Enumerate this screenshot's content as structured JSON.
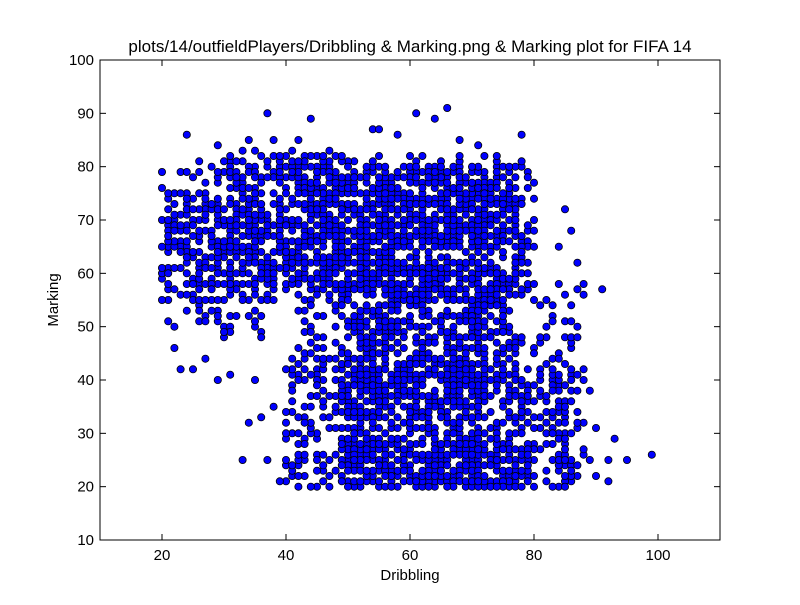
{
  "chart_data": {
    "type": "scatter",
    "title": "plots/14/outfieldPlayers/Dribbling & Marking.png & Marking plot for FIFA 14",
    "xlabel": "Dribbling",
    "ylabel": "Marking",
    "xlim": [
      10,
      110
    ],
    "ylim": [
      10,
      100
    ],
    "xticks": [
      "20",
      "40",
      "60",
      "80",
      "100"
    ],
    "yticks": [
      "10",
      "20",
      "30",
      "40",
      "50",
      "60",
      "70",
      "80",
      "90",
      "100"
    ],
    "marker_color": "#0000ff",
    "marker_edge": "#000000",
    "grid": false,
    "legend": false,
    "regions": [
      {
        "x": [
          20,
          80
        ],
        "y": [
          55,
          80
        ],
        "n": 750
      },
      {
        "x": [
          42,
          78
        ],
        "y": [
          40,
          82
        ],
        "n": 700
      },
      {
        "x": [
          50,
          72
        ],
        "y": [
          20,
          80
        ],
        "n": 750
      },
      {
        "x": [
          20,
          36
        ],
        "y": [
          48,
          75
        ],
        "n": 160
      },
      {
        "x": [
          48,
          86
        ],
        "y": [
          20,
          42
        ],
        "n": 420
      },
      {
        "x": [
          40,
          56
        ],
        "y": [
          20,
          45
        ],
        "n": 160
      },
      {
        "x": [
          72,
          88
        ],
        "y": [
          20,
          58
        ],
        "n": 160
      },
      {
        "x": [
          30,
          50
        ],
        "y": [
          58,
          83
        ],
        "n": 260
      },
      {
        "x": [
          56,
          80
        ],
        "y": [
          20,
          28
        ],
        "n": 200
      }
    ],
    "points": [
      [
        37,
        90
      ],
      [
        44,
        89
      ],
      [
        61,
        90
      ],
      [
        64,
        89
      ],
      [
        66,
        91
      ],
      [
        24,
        86
      ],
      [
        78,
        86
      ],
      [
        29,
        84
      ],
      [
        34,
        85
      ],
      [
        38,
        85
      ],
      [
        42,
        85
      ],
      [
        58,
        86
      ],
      [
        68,
        85
      ],
      [
        71,
        84
      ],
      [
        54,
        87
      ],
      [
        55,
        87
      ],
      [
        99,
        26
      ],
      [
        91,
        57
      ],
      [
        93,
        29
      ],
      [
        92,
        25
      ],
      [
        92,
        21
      ],
      [
        90,
        31
      ],
      [
        89,
        38
      ],
      [
        88,
        58
      ],
      [
        87,
        62
      ],
      [
        86,
        68
      ],
      [
        85,
        72
      ],
      [
        84,
        65
      ],
      [
        22,
        46
      ],
      [
        23,
        42
      ],
      [
        25,
        42
      ],
      [
        27,
        44
      ],
      [
        29,
        40
      ],
      [
        31,
        41
      ],
      [
        33,
        25
      ],
      [
        34,
        32
      ],
      [
        35,
        40
      ],
      [
        37,
        25
      ],
      [
        38,
        35
      ],
      [
        39,
        21
      ],
      [
        44,
        20
      ],
      [
        46,
        21
      ],
      [
        41,
        30
      ],
      [
        43,
        28
      ],
      [
        20,
        60
      ],
      [
        20,
        55
      ],
      [
        21,
        70
      ],
      [
        20,
        65
      ],
      [
        22,
        50
      ],
      [
        23,
        75
      ],
      [
        25,
        72
      ],
      [
        24,
        60
      ],
      [
        27,
        55
      ],
      [
        26,
        81
      ],
      [
        30,
        81
      ],
      [
        32,
        78
      ],
      [
        36,
        33
      ],
      [
        40,
        25
      ],
      [
        42,
        22
      ],
      [
        45,
        20
      ],
      [
        47,
        20
      ],
      [
        95,
        25
      ],
      [
        90,
        22
      ],
      [
        83,
        40
      ],
      [
        85,
        35
      ],
      [
        82,
        50
      ],
      [
        80,
        55
      ],
      [
        81,
        48
      ],
      [
        84,
        44
      ],
      [
        86,
        30
      ],
      [
        88,
        27
      ],
      [
        87,
        24
      ],
      [
        86,
        22
      ],
      [
        89,
        25
      ],
      [
        85,
        20
      ],
      [
        83,
        20
      ],
      [
        80,
        20
      ]
    ]
  }
}
